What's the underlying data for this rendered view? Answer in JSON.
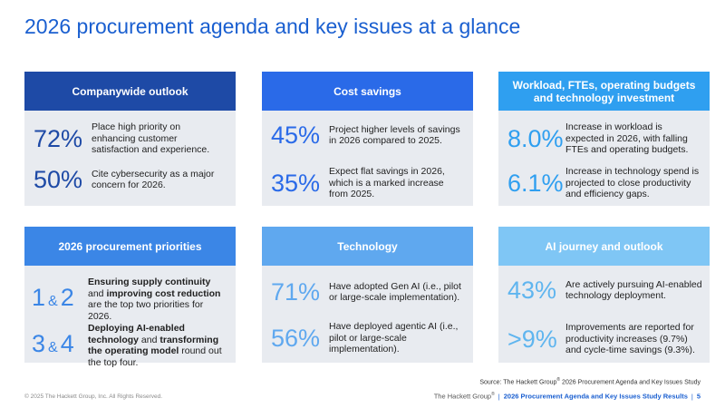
{
  "title": "2026 procurement agenda and key issues at a glance",
  "colors": {
    "navy": "#1e4aa6",
    "royal": "#2a6ae8",
    "sky": "#2f9ff0",
    "mid": "#3b86e6",
    "light": "#5fa8ef",
    "pale": "#7fc6f5",
    "body_bg": "#e8ebf0"
  },
  "cards": {
    "companywide": {
      "header": "Companywide outlook",
      "stat1": "72%",
      "desc1": "Place high priority on enhancing customer satisfaction and experience.",
      "stat2": "50%",
      "desc2": "Cite cybersecurity as a major concern for 2026."
    },
    "savings": {
      "header": "Cost savings",
      "stat1": "45%",
      "desc1": "Project higher levels of savings in 2026 compared to 2025.",
      "stat2": "35%",
      "desc2": "Expect flat savings in 2026, which is a marked increase from 2025."
    },
    "workload": {
      "header": "Workload, FTEs, operating budgets and technology investment",
      "stat1": "8.0%",
      "desc1": "Increase in workload is expected in 2026, with falling FTEs and operating budgets.",
      "stat2": "6.1%",
      "desc2": "Increase in technology spend is projected to close productivity and efficiency gaps."
    },
    "priorities": {
      "header": "2026 procurement priorities",
      "stat1_a": "1",
      "stat1_amp": "&",
      "stat1_b": "2",
      "desc1_b1": "Ensuring supply continuity",
      "desc1_t1": " and ",
      "desc1_b2": "improving cost reduction",
      "desc1_t2": " are the top two priorities for 2026.",
      "stat2_a": "3",
      "stat2_amp": "&",
      "stat2_b": "4",
      "desc2_b1": "Deploying AI-enabled technology",
      "desc2_t1": " and ",
      "desc2_b2": "transforming the operating model",
      "desc2_t2": " round out the top four."
    },
    "technology": {
      "header": "Technology",
      "stat1": "71%",
      "desc1": "Have adopted Gen AI (i.e., pilot or large-scale implementation).",
      "stat2": "56%",
      "desc2": "Have deployed agentic AI (i.e., pilot or large-scale implementation)."
    },
    "ai": {
      "header": "AI journey and outlook",
      "stat1": "43%",
      "desc1": "Are actively pursuing AI-enabled technology deployment.",
      "stat2": ">9%",
      "desc2": "Improvements are reported for productivity increases (9.7%) and cycle-time savings (9.3%)."
    }
  },
  "footer": {
    "source_pre": "Source: The Hackett Group",
    "source_reg": "®",
    "source_post": " 2026 Procurement Agenda and Key Issues Study",
    "copyright": "© 2025 The Hackett Group, Inc. All Rights Reserved.",
    "brand": "The Hackett Group",
    "brand_reg": "®",
    "sep": "|",
    "study": "2026 Procurement Agenda and Key Issues Study Results",
    "sep2": "|",
    "page": "5"
  }
}
